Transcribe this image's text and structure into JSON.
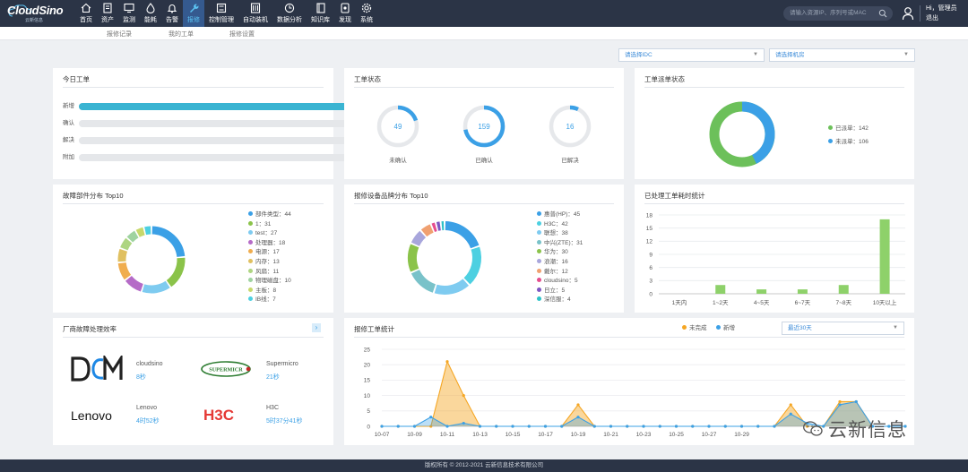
{
  "brand": {
    "logo_text": "CloudSino",
    "logo_sub": "云新信息"
  },
  "nav": [
    {
      "name": "home",
      "label": "首页",
      "icon": "home-icon"
    },
    {
      "name": "assets",
      "label": "资产",
      "icon": "assets-icon"
    },
    {
      "name": "monitor",
      "label": "监测",
      "icon": "monitor-icon"
    },
    {
      "name": "energy",
      "label": "能耗",
      "icon": "drop-icon"
    },
    {
      "name": "alarm",
      "label": "告警",
      "icon": "bell-icon"
    },
    {
      "name": "repair",
      "label": "报修",
      "icon": "wrench-icon",
      "active": true
    },
    {
      "name": "control",
      "label": "控制管理",
      "icon": "control-icon"
    },
    {
      "name": "auto-install",
      "label": "自动装机",
      "icon": "server-icon"
    },
    {
      "name": "analysis",
      "label": "数据分析",
      "icon": "clock-icon"
    },
    {
      "name": "knowledge",
      "label": "知识库",
      "icon": "book-icon"
    },
    {
      "name": "discover",
      "label": "发现",
      "icon": "discover-icon"
    },
    {
      "name": "system",
      "label": "系统",
      "icon": "gear-icon"
    }
  ],
  "search": {
    "placeholder": "请输入资源IP、序列号或MAC"
  },
  "user": {
    "greeting": "Hi，管理员",
    "logout": "退出"
  },
  "subnav": [
    "报修记录",
    "我的工单",
    "报修设置"
  ],
  "filters": {
    "idc": "请选择IDC",
    "room": "请选择机房"
  },
  "colors": {
    "accent": "#3ba0e6",
    "bar": "#3ab4d2",
    "green": "#8bc34a",
    "orange": "#f5a623",
    "nav_bg": "#2b3446"
  },
  "today": {
    "title": "今日工单",
    "rows": [
      {
        "label": "新增",
        "value": "1",
        "ratio": 1,
        "color": "#3ba0e6"
      },
      {
        "label": "确认",
        "value": "0",
        "ratio": 0,
        "color": "#3ba0e6"
      },
      {
        "label": "解决",
        "value": "0",
        "ratio": 0,
        "color": "#4caf50"
      },
      {
        "label": "附加",
        "value": "0",
        "ratio": 0,
        "color": "#e53935"
      }
    ]
  },
  "status": {
    "title": "工单状态",
    "rings": [
      {
        "value": "49",
        "label": "未确认",
        "fraction": 0.2
      },
      {
        "value": "159",
        "label": "已确认",
        "fraction": 0.72
      },
      {
        "value": "16",
        "label": "已解决",
        "fraction": 0.07
      }
    ]
  },
  "dispatch": {
    "title": "工单派单状态",
    "legend": [
      "已派单：142",
      "未派单：106"
    ],
    "colors": [
      "#6cc05a",
      "#3ba0e6"
    ]
  },
  "fault_parts": {
    "title": "故障部件分布 Top10"
  },
  "brand_dist": {
    "title": "报修设备品牌分布 Top10"
  },
  "processed": {
    "title": "已处理工单耗时统计"
  },
  "vendors": {
    "title": "厂商故障处理效率",
    "items": [
      {
        "logo": "DCM",
        "name": "cloudsino",
        "time": "8秒"
      },
      {
        "logo": "SUPERMICRO",
        "name": "Supermicro",
        "time": "21秒"
      },
      {
        "logo": "Lenovo",
        "name": "Lenovo",
        "time": "4时52秒"
      },
      {
        "logo": "H3C",
        "name": "H3C",
        "time": "5时37分41秒"
      }
    ]
  },
  "stats": {
    "title": "报修工单统计",
    "legend": [
      "未完成",
      "新增"
    ],
    "range": "最近30天"
  },
  "watermark": "云新信息",
  "footer": "版权所有 © 2012-2021  云新信息技术有限公司",
  "chart_data": [
    {
      "type": "pie",
      "categories": [
        "部件类型",
        "1",
        "test",
        "处理器",
        "电源",
        "内存",
        "风扇",
        "物理磁盘",
        "主板",
        "IB线"
      ],
      "values": [
        44,
        31,
        27,
        18,
        17,
        13,
        11,
        10,
        8,
        7
      ],
      "legend": [
        "部件类型：44",
        "1：31",
        "test：27",
        "处理器：18",
        "电源：17",
        "内存：13",
        "风扇：11",
        "物理磁盘：10",
        "主板：8",
        "IB线：7"
      ],
      "colors": [
        "#3ba0e6",
        "#8bc34a",
        "#7ecbf0",
        "#b56bc7",
        "#f0ad4e",
        "#e0c060",
        "#aed581",
        "#9fd3a0",
        "#c7d86b",
        "#4dd0e1"
      ]
    },
    {
      "type": "pie",
      "categories": [
        "惠普(HP)",
        "H3C",
        "联想",
        "中兴(ZTE)",
        "华为",
        "浪潮",
        "戴尔",
        "cloudsino",
        "日立",
        "深信服"
      ],
      "values": [
        45,
        42,
        38,
        31,
        30,
        16,
        12,
        5,
        5,
        4
      ],
      "legend": [
        "惠普(HP)：45",
        "H3C：42",
        "联想：38",
        "中兴(ZTE)：31",
        "华为：30",
        "浪潮：16",
        "戴尔：12",
        "cloudsino：5",
        "日立：5",
        "深信服：4"
      ],
      "colors": [
        "#3ba0e6",
        "#4dd0e1",
        "#7ecbf0",
        "#79c2c9",
        "#8bc34a",
        "#a8a6dc",
        "#f0a070",
        "#e54d8e",
        "#7e57c2",
        "#2ec2c8"
      ]
    },
    {
      "type": "bar",
      "categories": [
        "1天内",
        "1~2天",
        "4~5天",
        "6~7天",
        "7~8天",
        "10天以上"
      ],
      "values": [
        0,
        2,
        1,
        1,
        2,
        17
      ],
      "ylim": [
        0,
        18
      ],
      "yticks": [
        0,
        3,
        6,
        9,
        12,
        15,
        18
      ],
      "grid": true
    },
    {
      "type": "area",
      "xticks": [
        "10-07",
        "10-09",
        "10-11",
        "10-13",
        "10-15",
        "10-17",
        "10-19",
        "10-21",
        "10-23",
        "10-25",
        "10-27",
        "10-29"
      ],
      "ylim": [
        0,
        25
      ],
      "yticks": [
        0,
        5,
        10,
        15,
        20,
        25
      ],
      "series": [
        {
          "name": "未完成",
          "color": "#f5a623",
          "values": [
            0,
            0,
            0,
            0,
            21,
            10,
            0,
            0,
            0,
            0,
            0,
            0,
            7,
            0,
            0,
            0,
            0,
            0,
            0,
            0,
            0,
            0,
            0,
            0,
            0,
            7,
            0,
            0,
            8,
            8,
            0,
            0,
            0
          ]
        },
        {
          "name": "新增",
          "color": "#3ba0e6",
          "values": [
            0,
            0,
            0,
            3,
            0,
            1,
            0,
            0,
            0,
            0,
            0,
            0,
            3,
            0,
            0,
            0,
            0,
            0,
            0,
            0,
            0,
            0,
            0,
            0,
            0,
            4,
            1,
            0,
            7,
            8,
            0,
            0,
            0
          ]
        }
      ]
    }
  ]
}
